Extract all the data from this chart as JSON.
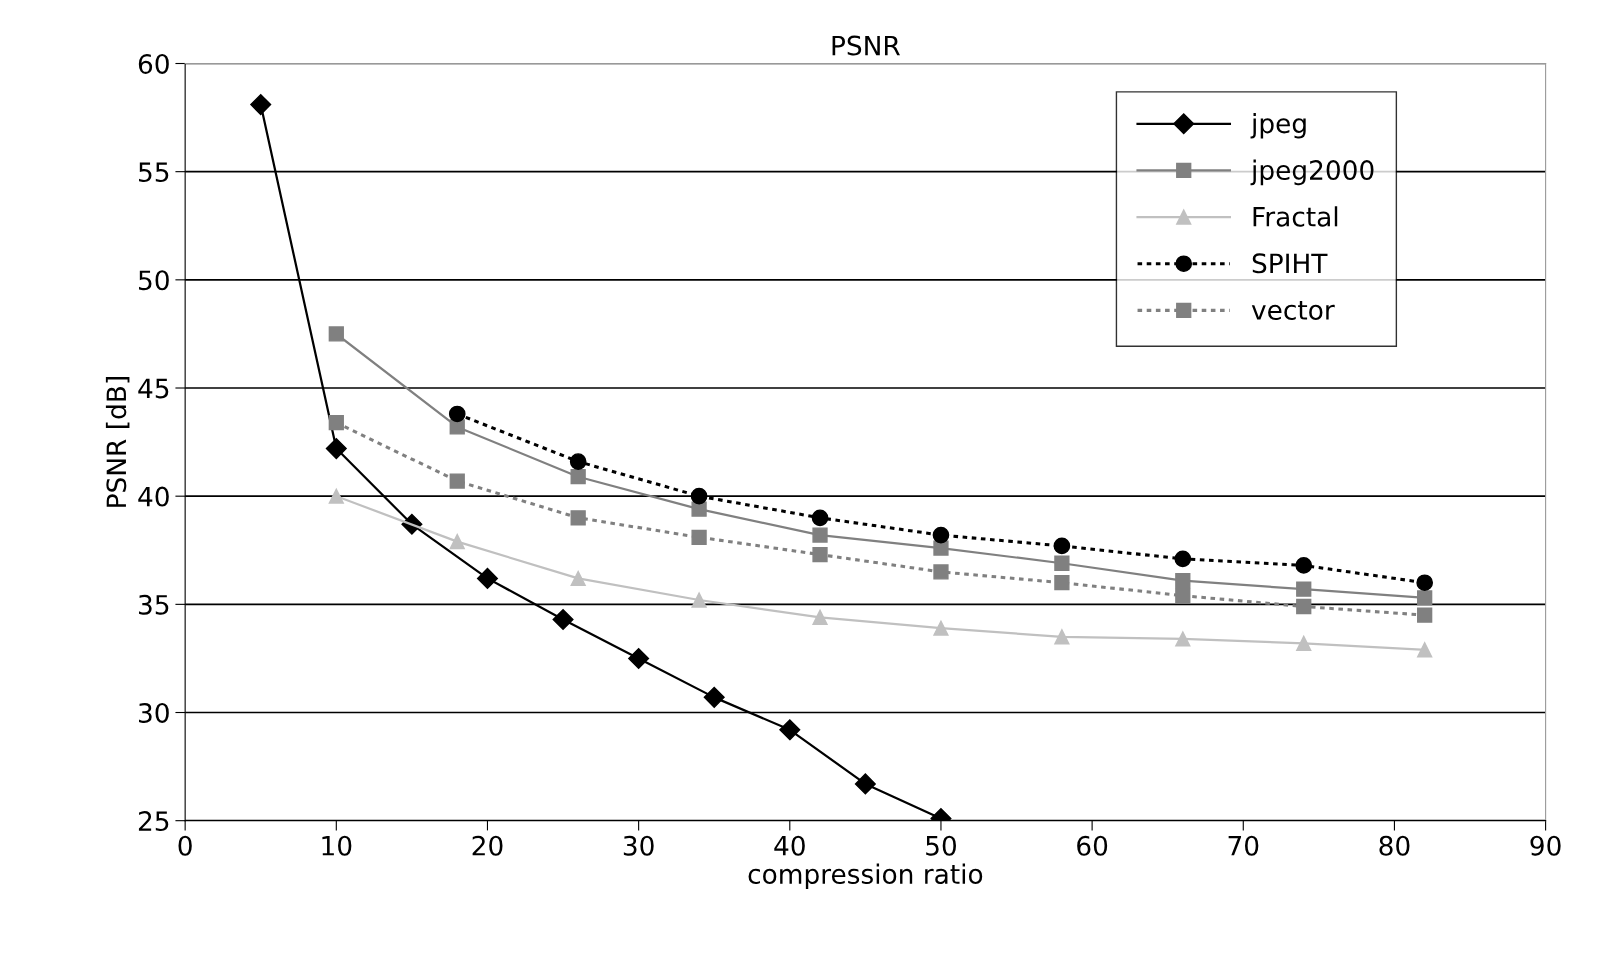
{
  "chart_data": {
    "type": "line",
    "title": "PSNR",
    "xlabel": "compression ratio",
    "ylabel": "PSNR [dB]",
    "xlim": [
      0,
      90
    ],
    "xticks": [
      0,
      10,
      20,
      30,
      40,
      50,
      60,
      70,
      80,
      90
    ],
    "ylim": [
      25,
      60
    ],
    "yticks": [
      25,
      30,
      35,
      40,
      45,
      50,
      55,
      60
    ],
    "grid": "y",
    "legend": "top right",
    "series": [
      {
        "name": "jpeg",
        "color": "#000000",
        "marker": "diamond",
        "line_style": "solid",
        "x": [
          5,
          10,
          15,
          20,
          25,
          30,
          35,
          40,
          45,
          50
        ],
        "values": [
          58.1,
          42.2,
          38.7,
          36.2,
          34.3,
          32.5,
          30.7,
          29.2,
          26.7,
          25.1
        ]
      },
      {
        "name": "jpeg2000",
        "color": "#808080",
        "marker": "square",
        "line_style": "solid",
        "x": [
          10,
          18,
          26,
          34,
          42,
          50,
          58,
          66,
          74,
          82
        ],
        "values": [
          47.5,
          43.2,
          40.9,
          39.4,
          38.2,
          37.6,
          36.9,
          36.1,
          35.7,
          35.3
        ]
      },
      {
        "name": "Fractal",
        "color": "#c0c0c0",
        "marker": "triangle",
        "line_style": "solid",
        "x": [
          10,
          18,
          26,
          34,
          42,
          50,
          58,
          66,
          74,
          82
        ],
        "values": [
          40.0,
          37.9,
          36.2,
          35.2,
          34.4,
          33.9,
          33.5,
          33.4,
          33.2,
          32.9
        ]
      },
      {
        "name": "SPIHT",
        "color": "#000000",
        "marker": "circle",
        "line_style": "dotted",
        "x": [
          18,
          26,
          34,
          42,
          50,
          58,
          66,
          74,
          82
        ],
        "values": [
          43.8,
          41.6,
          40.0,
          39.0,
          38.2,
          37.7,
          37.1,
          36.8,
          36.0
        ]
      },
      {
        "name": "vector",
        "color": "#808080",
        "marker": "square",
        "line_style": "dotted",
        "x": [
          10,
          18,
          26,
          34,
          42,
          50,
          58,
          66,
          74,
          82
        ],
        "values": [
          43.4,
          40.7,
          39.0,
          38.1,
          37.3,
          36.5,
          36.0,
          35.4,
          34.9,
          34.5
        ]
      }
    ]
  }
}
